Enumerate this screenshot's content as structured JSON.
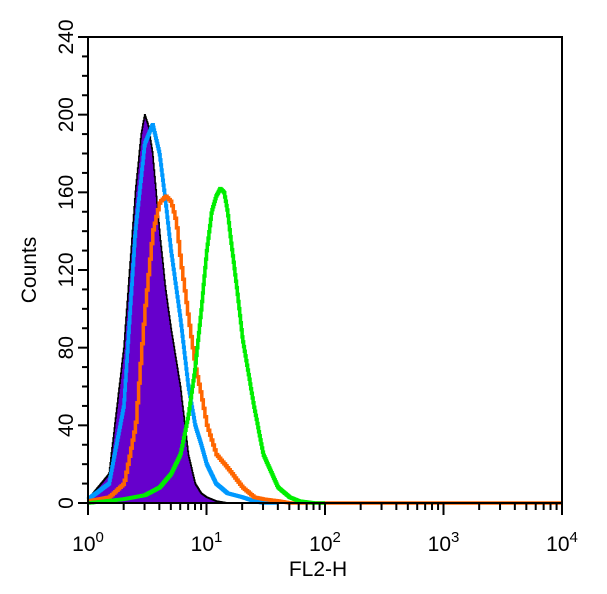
{
  "chart_data": {
    "type": "histogram",
    "xlabel": "FL2-H",
    "ylabel": "Counts",
    "xscale": "log",
    "xlim": [
      1,
      10000
    ],
    "ylim": [
      0,
      240
    ],
    "y_ticks": [
      "0",
      "40",
      "80",
      "120",
      "160",
      "200",
      "240"
    ],
    "x_ticks": [
      {
        "base": "10",
        "exp": "0"
      },
      {
        "base": "10",
        "exp": "1"
      },
      {
        "base": "10",
        "exp": "2"
      },
      {
        "base": "10",
        "exp": "3"
      },
      {
        "base": "10",
        "exp": "4"
      }
    ],
    "series": [
      {
        "style": "filled",
        "color": "#6600cc",
        "outline": "#000000",
        "x": [
          1.0,
          1.5,
          2.0,
          2.5,
          2.8,
          3.0,
          3.2,
          3.5,
          4.0,
          4.5,
          5.0,
          6.0,
          7.0,
          8.0,
          9.0,
          10.0,
          12.0,
          15.0,
          20.0,
          30.0
        ],
        "y": [
          2,
          15,
          80,
          160,
          190,
          200,
          195,
          180,
          140,
          110,
          90,
          60,
          25,
          10,
          5,
          3,
          1,
          0,
          0,
          0
        ]
      },
      {
        "style": "line",
        "color": "#0099ff",
        "x": [
          1.0,
          1.5,
          2.0,
          2.5,
          3.0,
          3.5,
          4.0,
          4.5,
          5.0,
          6.0,
          7.0,
          8.0,
          9.0,
          10.0,
          12.0,
          15.0,
          20.0,
          25.0,
          30.0,
          40.0
        ],
        "y": [
          2,
          10,
          50,
          140,
          185,
          195,
          180,
          155,
          130,
          95,
          60,
          40,
          30,
          20,
          10,
          5,
          3,
          1,
          0,
          0
        ]
      },
      {
        "style": "line",
        "color": "#ff6600",
        "x": [
          1.0,
          1.5,
          2.0,
          2.5,
          3.0,
          3.5,
          4.0,
          4.5,
          5.0,
          5.5,
          6.0,
          7.0,
          8.0,
          9.0,
          10.0,
          12.0,
          15.0,
          20.0,
          25.0,
          30.0,
          40.0,
          50.0,
          100.0,
          10000.0
        ],
        "y": [
          1,
          3,
          10,
          40,
          100,
          140,
          155,
          158,
          155,
          145,
          125,
          95,
          70,
          55,
          40,
          25,
          18,
          8,
          3,
          2,
          1,
          0,
          0,
          0
        ]
      },
      {
        "style": "line",
        "color": "#00ee00",
        "x": [
          1.0,
          2.0,
          3.0,
          4.0,
          5.0,
          6.0,
          7.0,
          8.0,
          9.0,
          10.0,
          11.0,
          12.0,
          13.0,
          14.0,
          15.0,
          16.0,
          18.0,
          20.0,
          25.0,
          30.0,
          40.0,
          50.0,
          60.0,
          80.0,
          100.0
        ],
        "y": [
          0,
          2,
          4,
          8,
          15,
          25,
          45,
          70,
          100,
          130,
          150,
          158,
          162,
          160,
          150,
          135,
          110,
          85,
          50,
          25,
          8,
          3,
          1,
          0,
          0
        ]
      }
    ]
  }
}
